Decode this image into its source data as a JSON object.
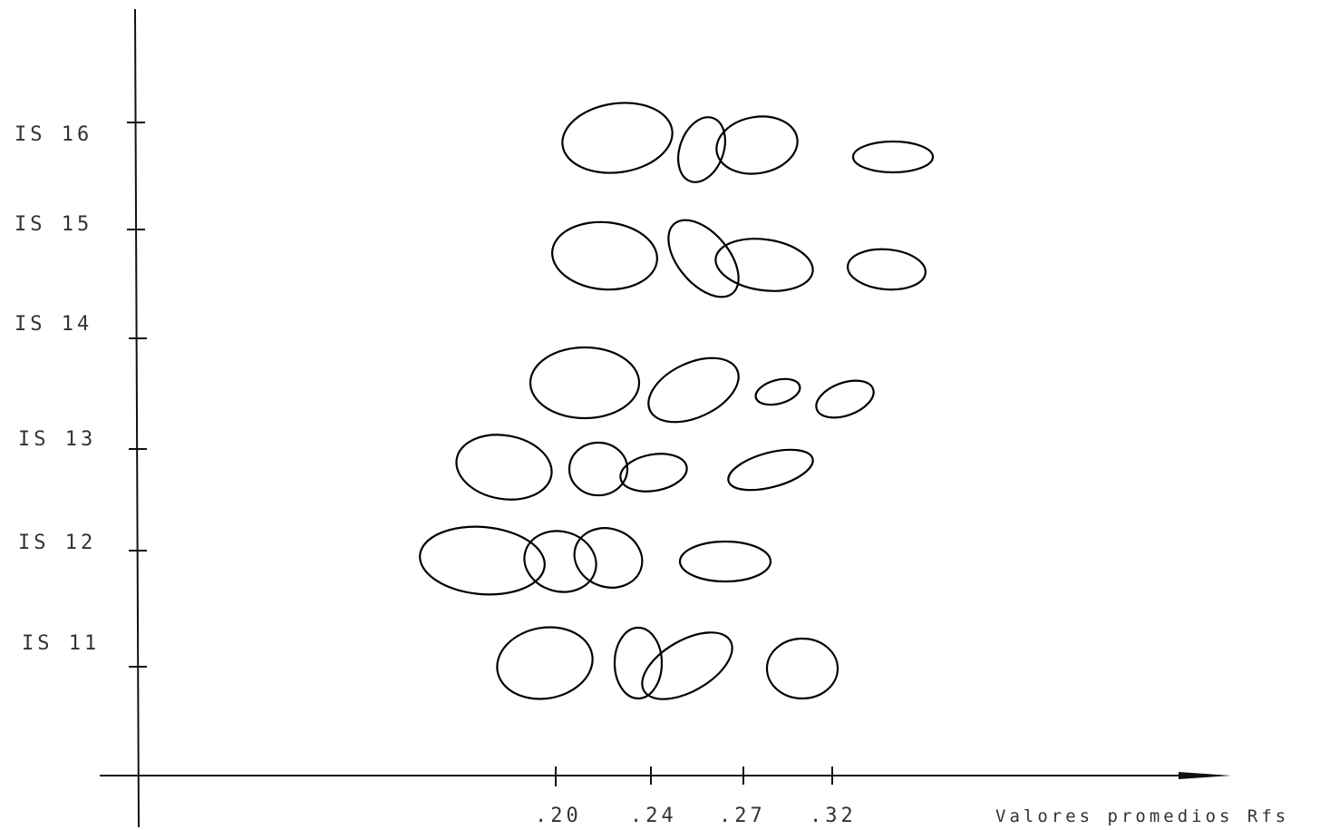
{
  "y_labels": [
    "IS 16",
    "IS 15",
    "IS 14",
    "IS 13",
    "IS 12",
    "IS 11"
  ],
  "x_labels": [
    ".20",
    ".24",
    ".27",
    ".32"
  ],
  "x_axis_label": "Valores promedios Rfs"
}
